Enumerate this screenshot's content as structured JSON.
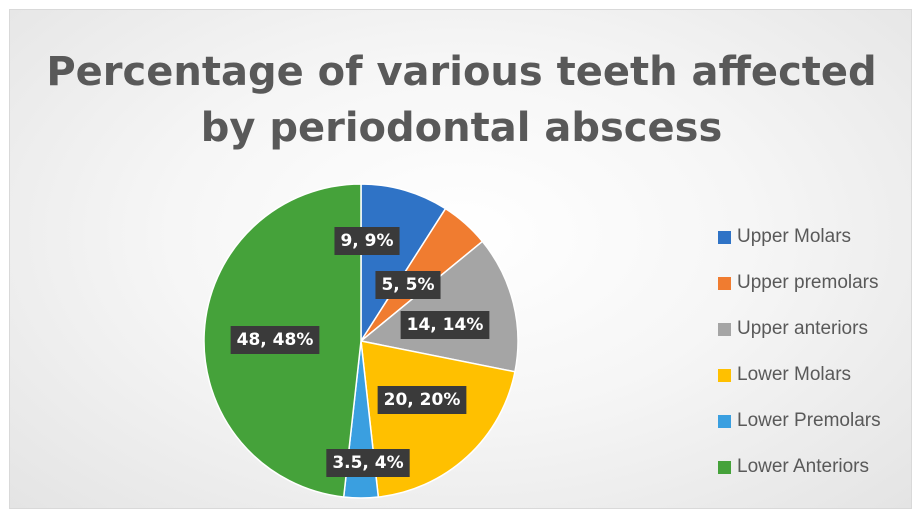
{
  "chart_data": {
    "type": "pie",
    "title_lines": [
      "Percentage of various teeth affected",
      "by periodontal abscess"
    ],
    "slices": [
      {
        "name": "Upper Molars",
        "value": 9,
        "label": "9, 9%",
        "color": "#2f73c6"
      },
      {
        "name": "Upper premolars",
        "value": 5,
        "label": "5, 5%",
        "color": "#f07c30"
      },
      {
        "name": "Upper anteriors",
        "value": 14,
        "label": "14, 14%",
        "color": "#a5a5a5"
      },
      {
        "name": "Lower Molars",
        "value": 20,
        "label": "20, 20%",
        "color": "#ffc000"
      },
      {
        "name": "Lower Premolars",
        "value": 3.5,
        "label": "3.5, 4%",
        "color": "#3a9fe0"
      },
      {
        "name": "Lower Anteriors",
        "value": 48,
        "label": "48, 48%",
        "color": "#45a23a"
      }
    ],
    "legend_position": "right",
    "data_label_style": "white bold text on dark box"
  }
}
